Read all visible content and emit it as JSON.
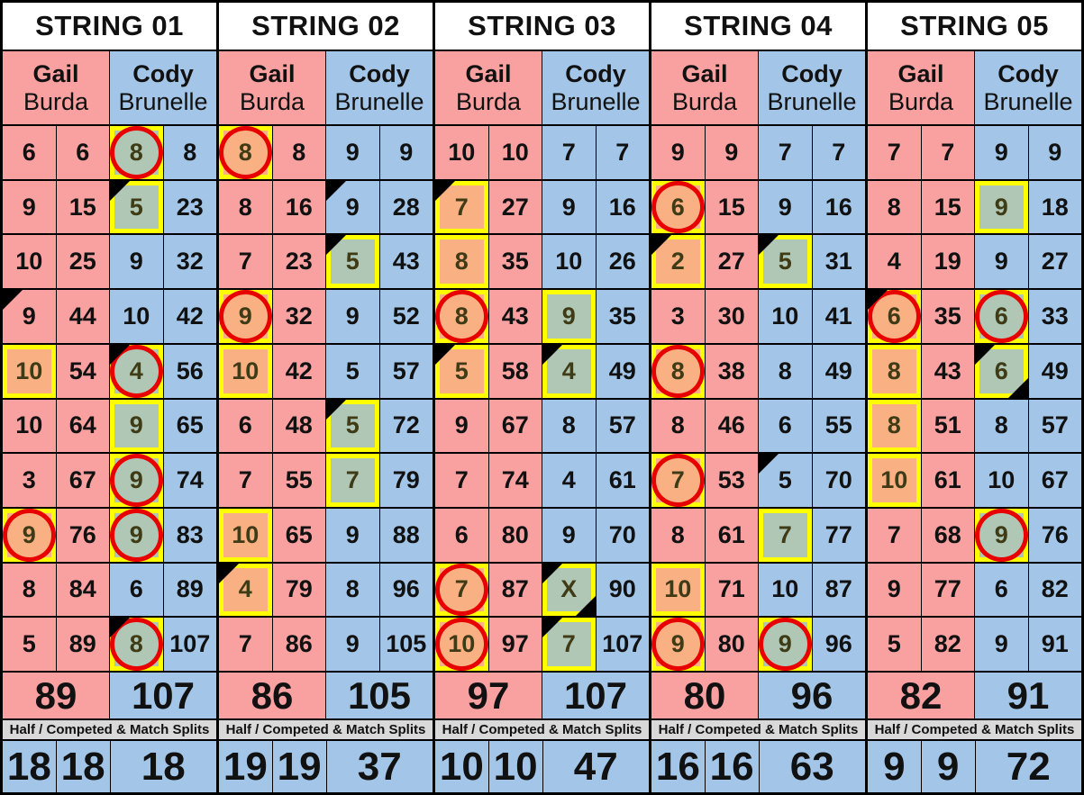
{
  "splits_label": "Half / Competed & Match Splits",
  "colors": {
    "gail_column": "#F9A0A1",
    "cody_column": "#A3C6E8",
    "highlight_border": "#FFFF00",
    "orange_fill": "#F9B183",
    "green_fill": "#AFC7B4",
    "circle_red": "#E80000",
    "splits_bar_gray": "#D9D9D9",
    "grid_line": "#000000",
    "header_bg": "#FFFFFF",
    "marked_number_text": "#3E3B16"
  },
  "strings": [
    {
      "title": "STRING 01",
      "players": [
        {
          "first": "Gail",
          "last": "Burda"
        },
        {
          "first": "Cody",
          "last": "Brunelle"
        }
      ],
      "rows": [
        [
          {
            "v": "6",
            "marks": []
          },
          "6",
          {
            "v": "8",
            "marks": [
              "green-box",
              "red-circle"
            ]
          },
          "8"
        ],
        [
          {
            "v": "9",
            "marks": []
          },
          "15",
          {
            "v": "5",
            "marks": [
              "green-box",
              "black-triangle-tl"
            ]
          },
          "23"
        ],
        [
          {
            "v": "10",
            "marks": []
          },
          "25",
          {
            "v": "9",
            "marks": []
          },
          "32"
        ],
        [
          {
            "v": "9",
            "marks": [
              "black-triangle-tl"
            ]
          },
          "44",
          {
            "v": "10",
            "marks": []
          },
          "42"
        ],
        [
          {
            "v": "10",
            "marks": [
              "orange-box"
            ]
          },
          "54",
          {
            "v": "4",
            "marks": [
              "green-box",
              "red-circle",
              "black-triangle-tl"
            ]
          },
          "56"
        ],
        [
          {
            "v": "10",
            "marks": []
          },
          "64",
          {
            "v": "9",
            "marks": [
              "green-box"
            ]
          },
          "65"
        ],
        [
          {
            "v": "3",
            "marks": []
          },
          "67",
          {
            "v": "9",
            "marks": [
              "green-box",
              "red-circle"
            ]
          },
          "74"
        ],
        [
          {
            "v": "9",
            "marks": [
              "orange-box",
              "red-circle"
            ]
          },
          "76",
          {
            "v": "9",
            "marks": [
              "green-box",
              "red-circle"
            ]
          },
          "83"
        ],
        [
          {
            "v": "8",
            "marks": []
          },
          "84",
          {
            "v": "6",
            "marks": []
          },
          "89"
        ],
        [
          {
            "v": "5",
            "marks": []
          },
          "89",
          {
            "v": "8",
            "marks": [
              "green-box",
              "red-circle",
              "black-triangle-tl"
            ]
          },
          "107"
        ]
      ],
      "totals": [
        "89",
        "107"
      ],
      "bottom": [
        "18",
        "18",
        "18"
      ]
    },
    {
      "title": "STRING 02",
      "players": [
        {
          "first": "Gail",
          "last": "Burda"
        },
        {
          "first": "Cody",
          "last": "Brunelle"
        }
      ],
      "rows": [
        [
          {
            "v": "8",
            "marks": [
              "orange-box",
              "red-circle"
            ]
          },
          "8",
          {
            "v": "9",
            "marks": []
          },
          "9"
        ],
        [
          {
            "v": "8",
            "marks": []
          },
          "16",
          {
            "v": "9",
            "marks": [
              "black-triangle-tl"
            ]
          },
          "28"
        ],
        [
          {
            "v": "7",
            "marks": []
          },
          "23",
          {
            "v": "5",
            "marks": [
              "green-box",
              "black-triangle-tl"
            ]
          },
          "43"
        ],
        [
          {
            "v": "9",
            "marks": [
              "orange-box",
              "red-circle"
            ]
          },
          "32",
          {
            "v": "9",
            "marks": []
          },
          "52"
        ],
        [
          {
            "v": "10",
            "marks": [
              "orange-box"
            ]
          },
          "42",
          {
            "v": "5",
            "marks": []
          },
          "57"
        ],
        [
          {
            "v": "6",
            "marks": []
          },
          "48",
          {
            "v": "5",
            "marks": [
              "green-box",
              "black-triangle-tl"
            ]
          },
          "72"
        ],
        [
          {
            "v": "7",
            "marks": []
          },
          "55",
          {
            "v": "7",
            "marks": [
              "green-box"
            ]
          },
          "79"
        ],
        [
          {
            "v": "10",
            "marks": [
              "orange-box"
            ]
          },
          "65",
          {
            "v": "9",
            "marks": []
          },
          "88"
        ],
        [
          {
            "v": "4",
            "marks": [
              "orange-box",
              "black-triangle-tl"
            ]
          },
          "79",
          {
            "v": "8",
            "marks": []
          },
          "96"
        ],
        [
          {
            "v": "7",
            "marks": []
          },
          "86",
          {
            "v": "9",
            "marks": []
          },
          "105"
        ]
      ],
      "totals": [
        "86",
        "105"
      ],
      "bottom": [
        "19",
        "19",
        "37"
      ]
    },
    {
      "title": "STRING 03",
      "players": [
        {
          "first": "Gail",
          "last": "Burda"
        },
        {
          "first": "Cody",
          "last": "Brunelle"
        }
      ],
      "rows": [
        [
          {
            "v": "10",
            "marks": []
          },
          "10",
          {
            "v": "7",
            "marks": []
          },
          "7"
        ],
        [
          {
            "v": "7",
            "marks": [
              "orange-box",
              "black-triangle-tl"
            ]
          },
          "27",
          {
            "v": "9",
            "marks": []
          },
          "16"
        ],
        [
          {
            "v": "8",
            "marks": [
              "orange-box"
            ]
          },
          "35",
          {
            "v": "10",
            "marks": []
          },
          "26"
        ],
        [
          {
            "v": "8",
            "marks": [
              "orange-box",
              "red-circle"
            ]
          },
          "43",
          {
            "v": "9",
            "marks": [
              "green-box"
            ]
          },
          "35"
        ],
        [
          {
            "v": "5",
            "marks": [
              "orange-box",
              "black-triangle-tl"
            ]
          },
          "58",
          {
            "v": "4",
            "marks": [
              "green-box",
              "black-triangle-tl"
            ]
          },
          "49"
        ],
        [
          {
            "v": "9",
            "marks": []
          },
          "67",
          {
            "v": "8",
            "marks": []
          },
          "57"
        ],
        [
          {
            "v": "7",
            "marks": []
          },
          "74",
          {
            "v": "4",
            "marks": []
          },
          "61"
        ],
        [
          {
            "v": "6",
            "marks": []
          },
          "80",
          {
            "v": "9",
            "marks": []
          },
          "70"
        ],
        [
          {
            "v": "7",
            "marks": [
              "orange-box",
              "red-circle"
            ]
          },
          "87",
          {
            "v": "X",
            "marks": [
              "green-box",
              "black-triangle-tl",
              "black-triangle-br"
            ]
          },
          "90"
        ],
        [
          {
            "v": "10",
            "marks": [
              "orange-box",
              "red-circle"
            ]
          },
          "97",
          {
            "v": "7",
            "marks": [
              "green-box",
              "black-triangle-tl"
            ]
          },
          "107"
        ]
      ],
      "totals": [
        "97",
        "107"
      ],
      "bottom": [
        "10",
        "10",
        "47"
      ]
    },
    {
      "title": "STRING 04",
      "players": [
        {
          "first": "Gail",
          "last": "Burda"
        },
        {
          "first": "Cody",
          "last": "Brunelle"
        }
      ],
      "rows": [
        [
          {
            "v": "9",
            "marks": []
          },
          "9",
          {
            "v": "7",
            "marks": []
          },
          "7"
        ],
        [
          {
            "v": "6",
            "marks": [
              "orange-box",
              "red-circle"
            ]
          },
          "15",
          {
            "v": "9",
            "marks": []
          },
          "16"
        ],
        [
          {
            "v": "2",
            "marks": [
              "orange-box",
              "black-triangle-tl"
            ]
          },
          "27",
          {
            "v": "5",
            "marks": [
              "green-box",
              "black-triangle-tl"
            ]
          },
          "31"
        ],
        [
          {
            "v": "3",
            "marks": []
          },
          "30",
          {
            "v": "10",
            "marks": []
          },
          "41"
        ],
        [
          {
            "v": "8",
            "marks": [
              "orange-box",
              "red-circle"
            ]
          },
          "38",
          {
            "v": "8",
            "marks": []
          },
          "49"
        ],
        [
          {
            "v": "8",
            "marks": []
          },
          "46",
          {
            "v": "6",
            "marks": []
          },
          "55"
        ],
        [
          {
            "v": "7",
            "marks": [
              "orange-box",
              "red-circle"
            ]
          },
          "53",
          {
            "v": "5",
            "marks": [
              "black-triangle-tl"
            ]
          },
          "70"
        ],
        [
          {
            "v": "8",
            "marks": []
          },
          "61",
          {
            "v": "7",
            "marks": [
              "green-box"
            ]
          },
          "77"
        ],
        [
          {
            "v": "10",
            "marks": [
              "orange-box"
            ]
          },
          "71",
          {
            "v": "10",
            "marks": []
          },
          "87"
        ],
        [
          {
            "v": "9",
            "marks": [
              "orange-box",
              "red-circle"
            ]
          },
          "80",
          {
            "v": "9",
            "marks": [
              "green-box",
              "red-circle"
            ]
          },
          "96"
        ]
      ],
      "totals": [
        "80",
        "96"
      ],
      "bottom": [
        "16",
        "16",
        "63"
      ]
    },
    {
      "title": "STRING 05",
      "players": [
        {
          "first": "Gail",
          "last": "Burda"
        },
        {
          "first": "Cody",
          "last": "Brunelle"
        }
      ],
      "rows": [
        [
          {
            "v": "7",
            "marks": []
          },
          "7",
          {
            "v": "9",
            "marks": []
          },
          "9"
        ],
        [
          {
            "v": "8",
            "marks": []
          },
          "15",
          {
            "v": "9",
            "marks": [
              "green-box"
            ]
          },
          "18"
        ],
        [
          {
            "v": "4",
            "marks": []
          },
          "19",
          {
            "v": "9",
            "marks": []
          },
          "27"
        ],
        [
          {
            "v": "6",
            "marks": [
              "orange-box",
              "red-circle",
              "black-triangle-tl"
            ]
          },
          "35",
          {
            "v": "6",
            "marks": [
              "green-box",
              "red-circle"
            ]
          },
          "33"
        ],
        [
          {
            "v": "8",
            "marks": [
              "orange-box"
            ]
          },
          "43",
          {
            "v": "6",
            "marks": [
              "green-box",
              "black-triangle-tl",
              "black-triangle-br"
            ]
          },
          "49"
        ],
        [
          {
            "v": "8",
            "marks": [
              "orange-box"
            ]
          },
          "51",
          {
            "v": "8",
            "marks": []
          },
          "57"
        ],
        [
          {
            "v": "10",
            "marks": [
              "orange-box"
            ]
          },
          "61",
          {
            "v": "10",
            "marks": []
          },
          "67"
        ],
        [
          {
            "v": "7",
            "marks": []
          },
          "68",
          {
            "v": "9",
            "marks": [
              "green-box",
              "red-circle"
            ]
          },
          "76"
        ],
        [
          {
            "v": "9",
            "marks": []
          },
          "77",
          {
            "v": "6",
            "marks": []
          },
          "82"
        ],
        [
          {
            "v": "5",
            "marks": []
          },
          "82",
          {
            "v": "9",
            "marks": []
          },
          "91"
        ]
      ],
      "totals": [
        "82",
        "91"
      ],
      "bottom": [
        "9",
        "9",
        "72"
      ]
    }
  ]
}
